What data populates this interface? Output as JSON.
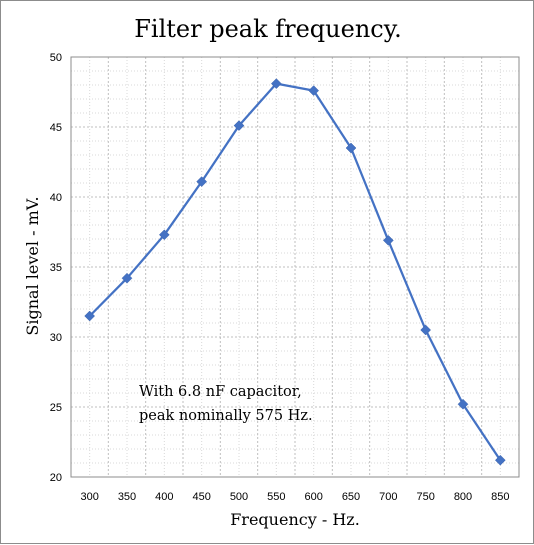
{
  "chart_data": {
    "type": "line",
    "title": "Filter peak frequency.",
    "xlabel": "Frequency - Hz.",
    "ylabel": "Signal level - mV.",
    "x": [
      300,
      350,
      400,
      450,
      500,
      550,
      600,
      650,
      700,
      750,
      800,
      850
    ],
    "x_ticks": [
      "300",
      "350",
      "400",
      "450",
      "500",
      "550",
      "600",
      "650",
      "700",
      "750",
      "800",
      "850"
    ],
    "y_ticks": [
      "20",
      "25",
      "30",
      "35",
      "40",
      "45",
      "50"
    ],
    "ylim": [
      20,
      50
    ],
    "grid": true,
    "series": [
      {
        "values": [
          31.5,
          34.2,
          37.3,
          41.1,
          45.1,
          48.1,
          47.6,
          43.5,
          36.9,
          30.5,
          25.2,
          21.2
        ]
      }
    ],
    "annotation": [
      "With 6.8 nF capacitor,",
      "peak nominally 575 Hz."
    ],
    "series_color": "#4472c4",
    "marker": "diamond"
  }
}
